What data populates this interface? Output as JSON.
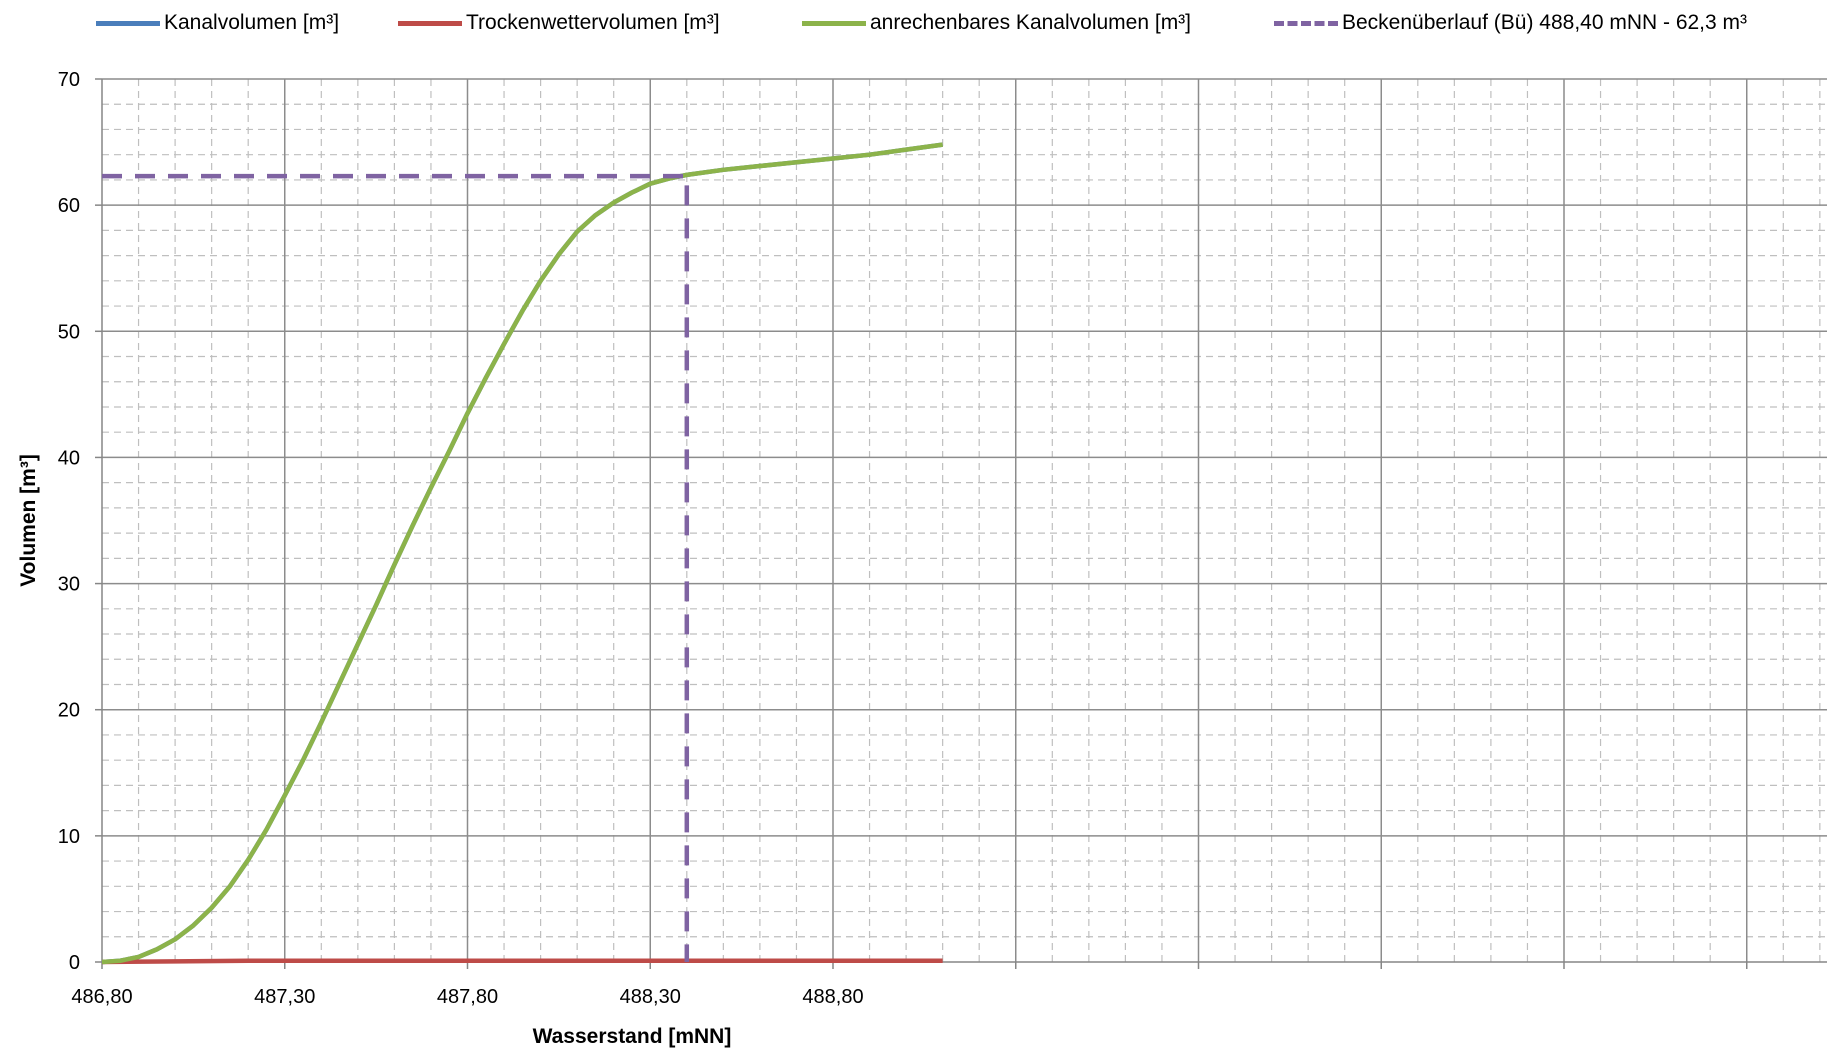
{
  "chart_data": {
    "type": "line",
    "title": "",
    "xlabel": "Wasserstand [mNN]",
    "ylabel": "Volumen [m³]",
    "xlim": [
      486.8,
      489.1
    ],
    "ylim": [
      0,
      70
    ],
    "x_ticks": [
      486.8,
      487.3,
      487.8,
      488.3,
      488.8
    ],
    "x_tick_labels": [
      "486,80",
      "487,30",
      "487,80",
      "488,30",
      "488,80"
    ],
    "y_ticks": [
      0,
      10,
      20,
      30,
      40,
      50,
      60,
      70
    ],
    "y_tick_labels": [
      "0",
      "10",
      "20",
      "30",
      "40",
      "50",
      "60",
      "70"
    ],
    "grid": true,
    "legend_position": "top",
    "series": [
      {
        "name": "Kanalvolumen [m³]",
        "color": "#4a7ebb",
        "dash": "solid",
        "x": [
          486.8,
          486.85,
          486.9,
          486.95,
          487.0,
          487.05,
          487.1,
          487.15,
          487.2,
          487.25,
          487.3,
          487.35,
          487.4,
          487.45,
          487.5,
          487.55,
          487.6,
          487.65,
          487.7,
          487.75,
          487.8,
          487.85,
          487.9,
          487.95,
          488.0,
          488.05,
          488.1,
          488.15,
          488.2,
          488.25,
          488.3,
          488.35,
          488.4,
          488.5,
          488.6,
          488.7,
          488.8,
          488.9,
          489.0,
          489.1
        ],
        "y": [
          0,
          0.1,
          0.4,
          1.0,
          1.8,
          2.9,
          4.3,
          6.0,
          8.1,
          10.5,
          13.2,
          16.0,
          19.0,
          22.1,
          25.2,
          28.3,
          31.5,
          34.6,
          37.6,
          40.5,
          43.5,
          46.3,
          49.0,
          51.6,
          54.0,
          56.1,
          57.9,
          59.2,
          60.2,
          61.0,
          61.7,
          62.1,
          62.4,
          62.8,
          63.1,
          63.4,
          63.7,
          64.0,
          64.4,
          64.8
        ]
      },
      {
        "name": "Trockenwettervolumen [m³]",
        "color": "#be4b48",
        "dash": "solid",
        "x": [
          486.8,
          487.0,
          487.2,
          487.4,
          487.6,
          487.8,
          488.0,
          488.2,
          488.4,
          488.6,
          488.8,
          489.0,
          489.1
        ],
        "y": [
          0,
          0.05,
          0.1,
          0.1,
          0.1,
          0.1,
          0.1,
          0.1,
          0.1,
          0.1,
          0.1,
          0.1,
          0.1
        ]
      },
      {
        "name": "anrechenbares Kanalvolumen [m³]",
        "color": "#8cb34a",
        "dash": "solid",
        "x": [
          486.8,
          486.85,
          486.9,
          486.95,
          487.0,
          487.05,
          487.1,
          487.15,
          487.2,
          487.25,
          487.3,
          487.35,
          487.4,
          487.45,
          487.5,
          487.55,
          487.6,
          487.65,
          487.7,
          487.75,
          487.8,
          487.85,
          487.9,
          487.95,
          488.0,
          488.05,
          488.1,
          488.15,
          488.2,
          488.25,
          488.3,
          488.35,
          488.4,
          488.5,
          488.6,
          488.7,
          488.8,
          488.9,
          489.0,
          489.1
        ],
        "y": [
          0,
          0.1,
          0.4,
          1.0,
          1.8,
          2.9,
          4.3,
          6.0,
          8.1,
          10.5,
          13.2,
          16.0,
          19.0,
          22.1,
          25.2,
          28.3,
          31.5,
          34.6,
          37.6,
          40.5,
          43.5,
          46.3,
          49.0,
          51.6,
          54.0,
          56.1,
          57.9,
          59.2,
          60.2,
          61.0,
          61.7,
          62.1,
          62.4,
          62.8,
          63.1,
          63.4,
          63.7,
          64.0,
          64.4,
          64.8
        ]
      },
      {
        "name": "Beckenüberlauf (Bü) 488,40 mNN - 62,3 m³",
        "color": "#7f63a2",
        "dash": "dashed",
        "x": [
          486.8,
          488.4,
          488.4
        ],
        "y": [
          62.3,
          62.3,
          0
        ]
      }
    ]
  }
}
